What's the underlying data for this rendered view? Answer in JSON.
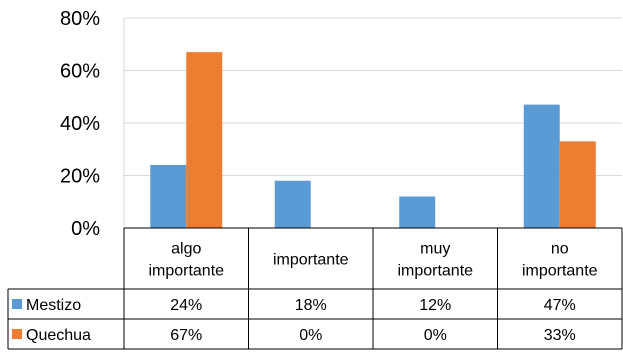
{
  "chart_data": {
    "type": "bar",
    "title": "",
    "xlabel": "",
    "ylabel": "",
    "ylim": [
      0,
      80
    ],
    "y_ticks": [
      "0%",
      "20%",
      "40%",
      "60%",
      "80%"
    ],
    "y_tick_values": [
      0,
      20,
      40,
      60,
      80
    ],
    "categories": [
      [
        "algo",
        "importante"
      ],
      [
        "importante"
      ],
      [
        "muy",
        "importante"
      ],
      [
        "no",
        "importante"
      ]
    ],
    "series": [
      {
        "name": "Mestizo",
        "color": "#5B9BD5",
        "values": [
          24,
          18,
          12,
          47
        ],
        "table_labels": [
          "24%",
          "18%",
          "12%",
          "47%"
        ]
      },
      {
        "name": "Quechua",
        "color": "#ED7D31",
        "values": [
          67,
          0,
          0,
          33
        ],
        "table_labels": [
          "67%",
          "0%",
          "0%",
          "33%"
        ]
      }
    ],
    "data_table": true,
    "grid": "horizontal",
    "legend": "data-table"
  }
}
